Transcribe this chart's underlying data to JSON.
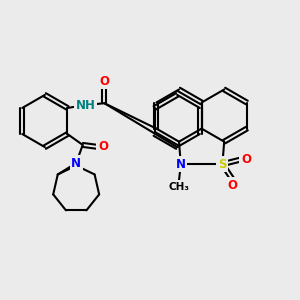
{
  "background_color": "#ebebeb",
  "bond_color": "#000000",
  "bond_width": 1.5,
  "dbo": 0.055,
  "atom_colors": {
    "N": "#0000ff",
    "O": "#ff0000",
    "S": "#cccc00",
    "NH": "#008080",
    "C": "#000000"
  },
  "fs": 8.5,
  "fss": 7.5
}
